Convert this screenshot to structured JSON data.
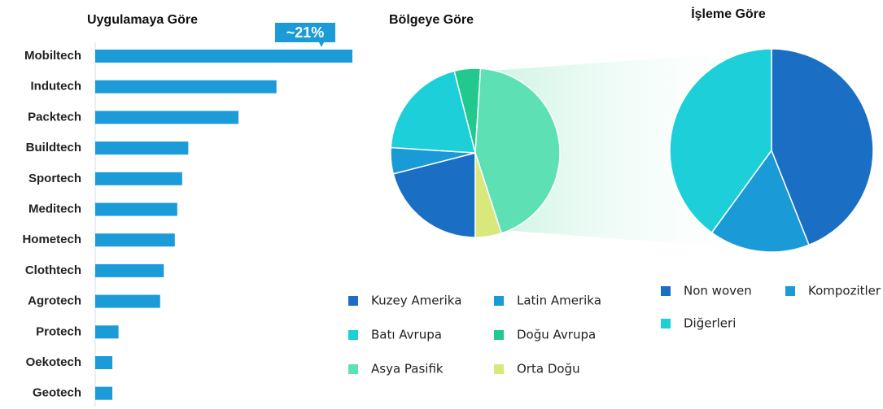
{
  "chart_data": [
    {
      "type": "bar",
      "title": "Uygulamaya Göre",
      "orientation": "horizontal",
      "color": "#1b9bd8",
      "annotation": "~21%",
      "categories": [
        "Mobiltech",
        "Indutech",
        "Packtech",
        "Buildtech",
        "Sportech",
        "Meditech",
        "Hometech",
        "Clothtech",
        "Agrotech",
        "Protech",
        "Oekotech",
        "Geotech"
      ],
      "values": [
        21,
        14.8,
        11.7,
        7.6,
        7.1,
        6.7,
        6.5,
        5.6,
        5.3,
        1.9,
        1.4,
        1.4
      ]
    },
    {
      "type": "pie",
      "title": "Bölgeye Göre",
      "categories": [
        "Kuzey Amerika",
        "Latin Amerika",
        "Batı Avrupa",
        "Doğu Avrupa",
        "Asya Pasifik",
        "Orta Doğu"
      ],
      "values": [
        21,
        5,
        20,
        5,
        44,
        5
      ],
      "colors": [
        "#1a6fc4",
        "#1a9ad6",
        "#1ccfd9",
        "#22c98f",
        "#5ee0b5",
        "#d9e87a"
      ]
    },
    {
      "type": "pie",
      "title": "İşleme Göre",
      "categories": [
        "Non woven",
        "Kompozitler",
        "Diğerleri"
      ],
      "values": [
        44,
        16,
        40
      ],
      "colors": [
        "#1a6fc4",
        "#1a9ad6",
        "#1ccfd9"
      ]
    }
  ]
}
